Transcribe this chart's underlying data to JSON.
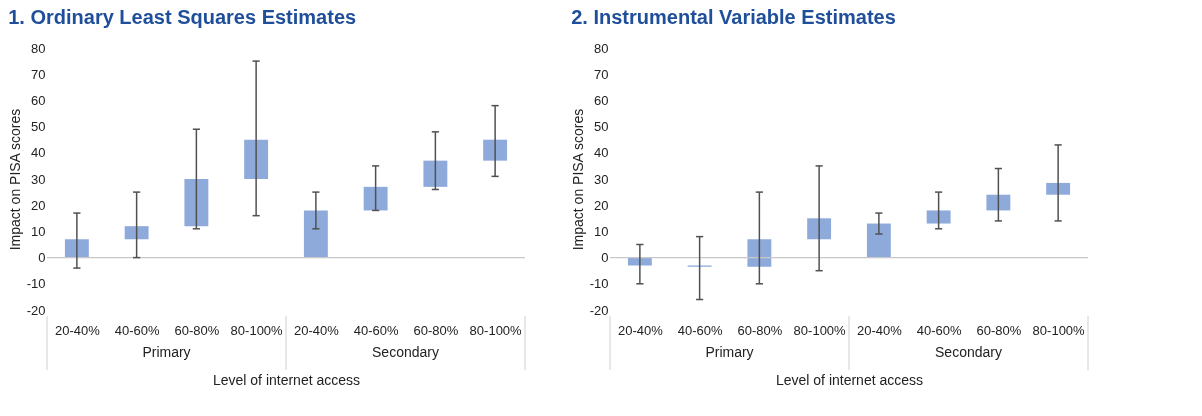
{
  "chart_data": [
    {
      "type": "bar",
      "title": "1.   Ordinary Least Squares Estimates",
      "xlabel": "Level of internet access",
      "ylabel": "Impact on PISA scores",
      "categories": [
        "20-40%",
        "40-60%",
        "60-80%",
        "80-100%",
        "20-40%",
        "40-60%",
        "60-80%",
        "80-100%"
      ],
      "base": [
        0,
        7,
        12,
        30,
        0,
        18,
        27,
        37
      ],
      "values": [
        7,
        5,
        18,
        15,
        18,
        9,
        10,
        8
      ],
      "errors": [
        [
          -4,
          17
        ],
        [
          0,
          25
        ],
        [
          11,
          49
        ],
        [
          16,
          75
        ],
        [
          11,
          25
        ],
        [
          18,
          35
        ],
        [
          26,
          48
        ],
        [
          31,
          58
        ]
      ],
      "color": "#8eaadb",
      "ylim": [
        -20,
        80
      ],
      "yticks": [
        -20,
        -10,
        0,
        10,
        20,
        30,
        40,
        50,
        60,
        70,
        80
      ],
      "ref_lines": [
        {
          "axis": "y",
          "value": 0,
          "label": null
        }
      ],
      "annotations": [
        "Primary",
        "Secondary"
      ],
      "grid": false
    },
    {
      "type": "bar",
      "title": "2.   Instrumental Variable Estimates",
      "xlabel": "Level of internet access",
      "ylabel": "Impact on PISA scores",
      "categories": [
        "20-40%",
        "40-60%",
        "60-80%",
        "80-100%",
        "20-40%",
        "40-60%",
        "60-80%",
        "80-100%"
      ],
      "base": [
        0,
        -3.5,
        -3.5,
        7,
        0,
        13,
        18,
        24
      ],
      "values": [
        -3,
        0.5,
        10.5,
        8,
        13,
        5,
        6,
        4.5
      ],
      "errors": [
        [
          -10,
          5
        ],
        [
          -16,
          8
        ],
        [
          -10,
          25
        ],
        [
          -5,
          35
        ],
        [
          9,
          17
        ],
        [
          11,
          25
        ],
        [
          14,
          34
        ],
        [
          14,
          43
        ]
      ],
      "color": "#8eaadb",
      "ylim": [
        -20,
        80
      ],
      "yticks": [
        -20,
        -10,
        0,
        10,
        20,
        30,
        40,
        50,
        60,
        70,
        80
      ],
      "ref_lines": [
        {
          "axis": "y",
          "value": 0,
          "label": null
        }
      ],
      "annotations": [
        "Primary",
        "Secondary"
      ],
      "grid": false
    }
  ]
}
